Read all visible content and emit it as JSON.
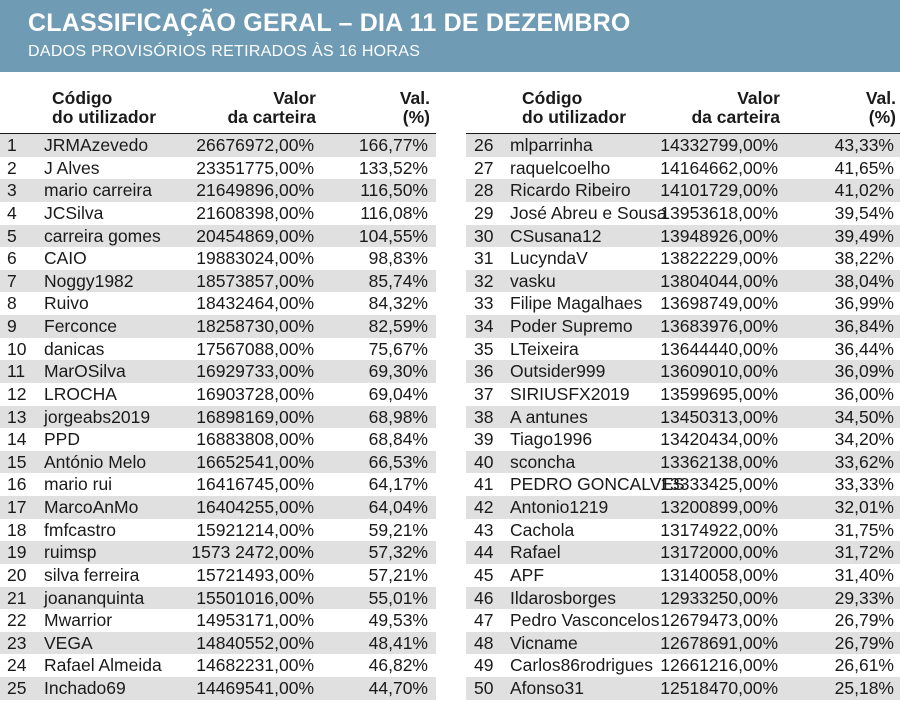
{
  "header": {
    "title": "CLASSIFICAÇÃO GERAL – DIA 11 DE DEZEMBRO",
    "subtitle": "DADOS PROVISÓRIOS RETIRADOS ÀS 16 HORAS"
  },
  "columns": {
    "user_line1": "Código",
    "user_line2": "do utilizador",
    "value_line1": "Valor",
    "value_line2": "da carteira",
    "pct_line1": "Val.",
    "pct_line2": "(%)"
  },
  "rows": [
    {
      "rank": "1",
      "user": "JRMAzevedo",
      "value": "26676972,00%",
      "pct": "166,77%"
    },
    {
      "rank": "2",
      "user": "J Alves",
      "value": "23351775,00%",
      "pct": "133,52%"
    },
    {
      "rank": "3",
      "user": "mario carreira",
      "value": "21649896,00%",
      "pct": "116,50%"
    },
    {
      "rank": "4",
      "user": "JCSilva",
      "value": "21608398,00%",
      "pct": "116,08%"
    },
    {
      "rank": "5",
      "user": "carreira gomes",
      "value": "20454869,00%",
      "pct": "104,55%"
    },
    {
      "rank": "6",
      "user": "CAIO",
      "value": "19883024,00%",
      "pct": "98,83%"
    },
    {
      "rank": "7",
      "user": "Noggy1982",
      "value": "18573857,00%",
      "pct": "85,74%"
    },
    {
      "rank": "8",
      "user": "Ruivo",
      "value": "18432464,00%",
      "pct": "84,32%"
    },
    {
      "rank": "9",
      "user": "Ferconce",
      "value": "18258730,00%",
      "pct": "82,59%"
    },
    {
      "rank": "10",
      "user": "danicas",
      "value": "17567088,00%",
      "pct": "75,67%"
    },
    {
      "rank": "11",
      "user": "MarOSilva",
      "value": "16929733,00%",
      "pct": "69,30%"
    },
    {
      "rank": "12",
      "user": "LROCHA",
      "value": "16903728,00%",
      "pct": "69,04%"
    },
    {
      "rank": "13",
      "user": "jorgeabs2019",
      "value": "16898169,00%",
      "pct": "68,98%"
    },
    {
      "rank": "14",
      "user": "PPD",
      "value": "16883808,00%",
      "pct": "68,84%"
    },
    {
      "rank": "15",
      "user": "António Melo",
      "value": "16652541,00%",
      "pct": "66,53%"
    },
    {
      "rank": "16",
      "user": "mario rui",
      "value": "16416745,00%",
      "pct": "64,17%"
    },
    {
      "rank": "17",
      "user": "MarcoAnMo",
      "value": "16404255,00%",
      "pct": "64,04%"
    },
    {
      "rank": "18",
      "user": "fmfcastro",
      "value": "15921214,00%",
      "pct": "59,21%"
    },
    {
      "rank": "19",
      "user": "ruimsp",
      "value": "1573 2472,00%",
      "pct": "57,32%"
    },
    {
      "rank": "20",
      "user": "silva ferreira",
      "value": "15721493,00%",
      "pct": "57,21%"
    },
    {
      "rank": "21",
      "user": "joananquinta",
      "value": "15501016,00%",
      "pct": "55,01%"
    },
    {
      "rank": "22",
      "user": "Mwarrior",
      "value": "14953171,00%",
      "pct": "49,53%"
    },
    {
      "rank": "23",
      "user": "VEGA",
      "value": "14840552,00%",
      "pct": "48,41%"
    },
    {
      "rank": "24",
      "user": "Rafael Almeida",
      "value": "14682231,00%",
      "pct": "46,82%"
    },
    {
      "rank": "25",
      "user": "Inchado69",
      "value": "14469541,00%",
      "pct": "44,70%"
    },
    {
      "rank": "26",
      "user": "mlparrinha",
      "value": "14332799,00%",
      "pct": "43,33%"
    },
    {
      "rank": "27",
      "user": "raquelcoelho",
      "value": "14164662,00%",
      "pct": "41,65%"
    },
    {
      "rank": "28",
      "user": "Ricardo Ribeiro",
      "value": "14101729,00%",
      "pct": "41,02%"
    },
    {
      "rank": "29",
      "user": "José Abreu e Sousa",
      "value": "13953618,00%",
      "pct": "39,54%"
    },
    {
      "rank": "30",
      "user": "CSusana12",
      "value": "13948926,00%",
      "pct": "39,49%"
    },
    {
      "rank": "31",
      "user": "LucyndaV",
      "value": "13822229,00%",
      "pct": "38,22%"
    },
    {
      "rank": "32",
      "user": "vasku",
      "value": "13804044,00%",
      "pct": "38,04%"
    },
    {
      "rank": "33",
      "user": "Filipe Magalhaes",
      "value": "13698749,00%",
      "pct": "36,99%"
    },
    {
      "rank": "34",
      "user": "Poder Supremo",
      "value": "13683976,00%",
      "pct": "36,84%"
    },
    {
      "rank": "35",
      "user": "LTeixeira",
      "value": "13644440,00%",
      "pct": "36,44%"
    },
    {
      "rank": "36",
      "user": "Outsider999",
      "value": "13609010,00%",
      "pct": "36,09%"
    },
    {
      "rank": "37",
      "user": "SIRIUSFX2019",
      "value": "13599695,00%",
      "pct": "36,00%"
    },
    {
      "rank": "38",
      "user": "A antunes",
      "value": "13450313,00%",
      "pct": "34,50%"
    },
    {
      "rank": "39",
      "user": "Tiago1996",
      "value": "13420434,00%",
      "pct": "34,20%"
    },
    {
      "rank": "40",
      "user": "sconcha",
      "value": "13362138,00%",
      "pct": "33,62%"
    },
    {
      "rank": "41",
      "user": "PEDRO GONCALVES",
      "value": "13333425,00%",
      "pct": "33,33%"
    },
    {
      "rank": "42",
      "user": "Antonio1219",
      "value": "13200899,00%",
      "pct": "32,01%"
    },
    {
      "rank": "43",
      "user": "Cachola",
      "value": "13174922,00%",
      "pct": "31,75%"
    },
    {
      "rank": "44",
      "user": "Rafael",
      "value": "13172000,00%",
      "pct": "31,72%"
    },
    {
      "rank": "45",
      "user": "APF",
      "value": "13140058,00%",
      "pct": "31,40%"
    },
    {
      "rank": "46",
      "user": "Ildarosborges",
      "value": "12933250,00%",
      "pct": "29,33%"
    },
    {
      "rank": "47",
      "user": "Pedro Vasconcelos",
      "value": "12679473,00%",
      "pct": "26,79%"
    },
    {
      "rank": "48",
      "user": "Vicname",
      "value": "12678691,00%",
      "pct": "26,79%"
    },
    {
      "rank": "49",
      "user": "Carlos86rodrigues",
      "value": "12661216,00%",
      "pct": "26,61%"
    },
    {
      "rank": "50",
      "user": "Afonso31",
      "value": "12518470,00%",
      "pct": "25,18%"
    }
  ]
}
